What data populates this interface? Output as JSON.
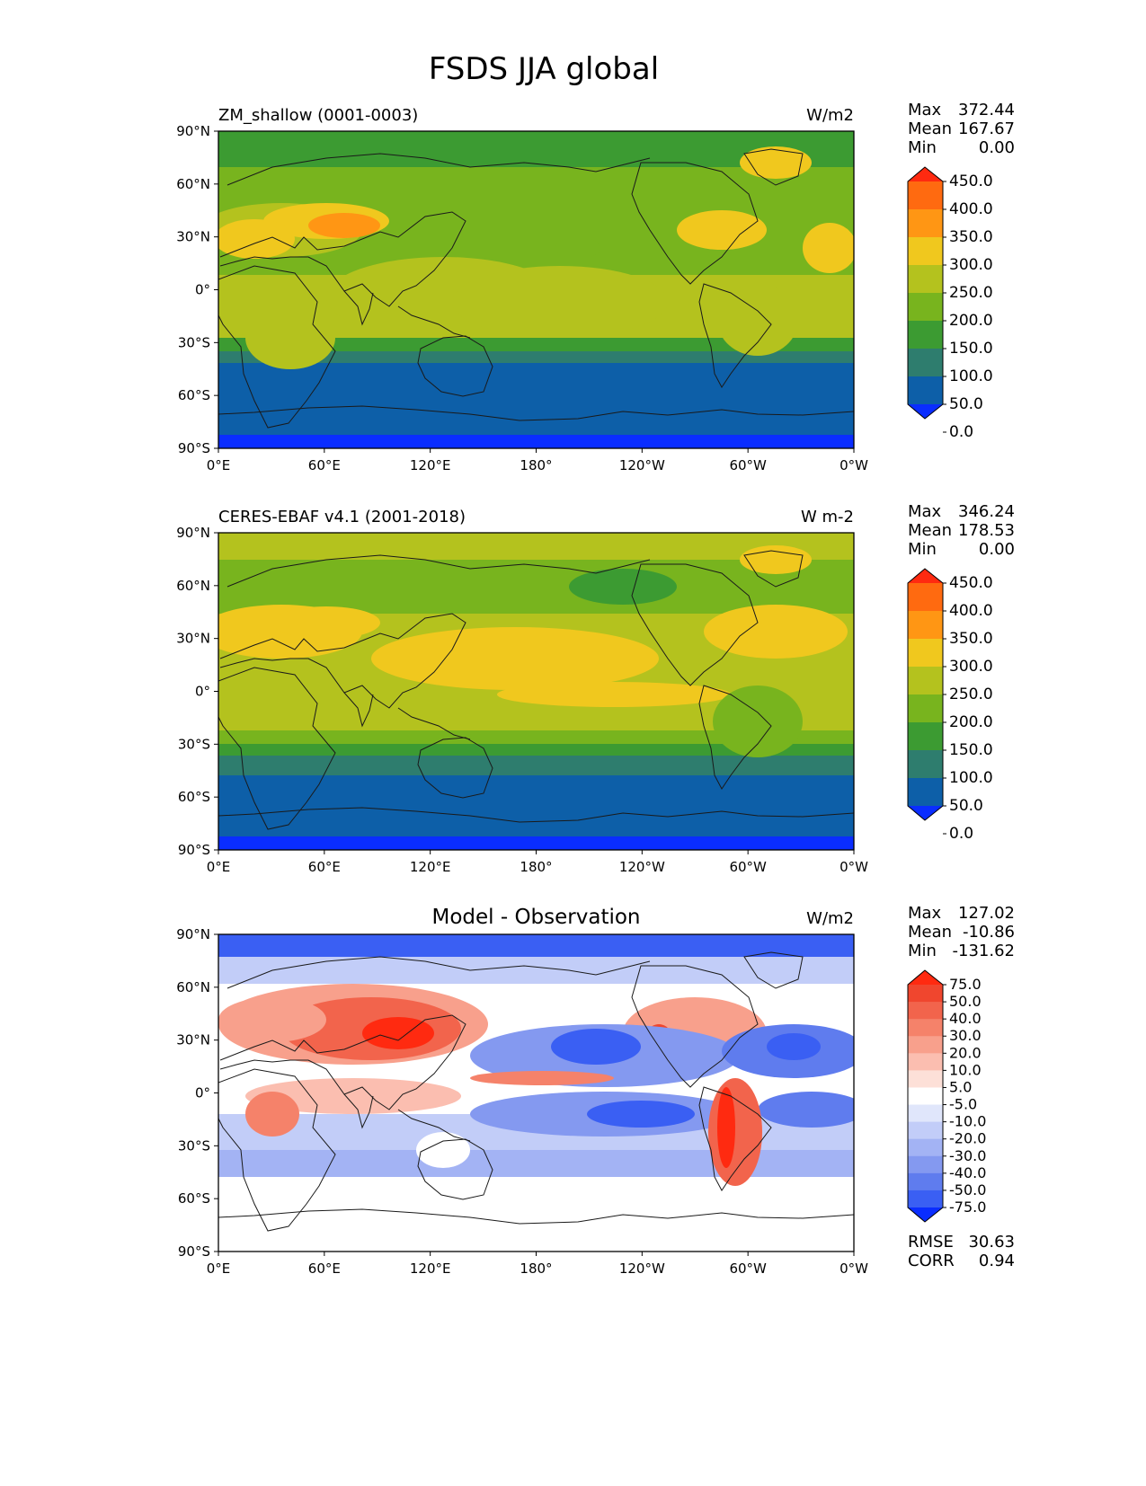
{
  "figure": {
    "title": "FSDS JJA global"
  },
  "axes": {
    "lat_ticks": [
      "90°N",
      "60°N",
      "30°N",
      "0°",
      "30°S",
      "60°S",
      "90°S"
    ],
    "lon_ticks": [
      "0°E",
      "60°E",
      "120°E",
      "180°",
      "120°W",
      "60°W",
      "0°W"
    ]
  },
  "panels": [
    {
      "id": "model",
      "left_title": "ZM_shallow (0001-0003)",
      "center_title": "",
      "units": "W/m2",
      "stats": [
        {
          "label": "Max",
          "value": "372.44"
        },
        {
          "label": "Mean",
          "value": "167.67"
        },
        {
          "label": "Min",
          "value": "0.00"
        }
      ],
      "colorbar": {
        "labels": [
          "450.0",
          "400.0",
          "350.0",
          "300.0",
          "250.0",
          "200.0",
          "150.0",
          "100.0",
          "50.0",
          "0.0"
        ],
        "colors": [
          "#ff2a10",
          "#ff6a10",
          "#ff9614",
          "#f0c81e",
          "#b4c21e",
          "#78b41e",
          "#3c9b32",
          "#2e7d6e",
          "#0d5fa8",
          "#0a2dff"
        ]
      },
      "footer": []
    },
    {
      "id": "obs",
      "left_title": "CERES-EBAF v4.1 (2001-2018)",
      "center_title": "",
      "units": "W m-2",
      "stats": [
        {
          "label": "Max",
          "value": "346.24"
        },
        {
          "label": "Mean",
          "value": "178.53"
        },
        {
          "label": "Min",
          "value": "0.00"
        }
      ],
      "colorbar": {
        "labels": [
          "450.0",
          "400.0",
          "350.0",
          "300.0",
          "250.0",
          "200.0",
          "150.0",
          "100.0",
          "50.0",
          "0.0"
        ],
        "colors": [
          "#ff2a10",
          "#ff6a10",
          "#ff9614",
          "#f0c81e",
          "#b4c21e",
          "#78b41e",
          "#3c9b32",
          "#2e7d6e",
          "#0d5fa8",
          "#0a2dff"
        ]
      },
      "footer": []
    },
    {
      "id": "diff",
      "left_title": "",
      "center_title": "Model - Observation",
      "units": "W/m2",
      "stats": [
        {
          "label": "Max",
          "value": "127.02"
        },
        {
          "label": "Mean",
          "value": "-10.86"
        },
        {
          "label": "Min",
          "value": "-131.62"
        }
      ],
      "colorbar": {
        "labels": [
          "75.0",
          "50.0",
          "40.0",
          "30.0",
          "20.0",
          "10.0",
          "5.0",
          "-5.0",
          "-10.0",
          "-20.0",
          "-30.0",
          "-40.0",
          "-50.0",
          "-75.0"
        ],
        "colors": [
          "#ff2a10",
          "#f0462e",
          "#f2644c",
          "#f5826a",
          "#f8a08c",
          "#fbbeb0",
          "#fde0d8",
          "#ffffff",
          "#e0e6fb",
          "#c2cdf8",
          "#a3b3f4",
          "#8499f0",
          "#5f7cee",
          "#3a5ff3",
          "#0a2dff"
        ]
      },
      "footer": [
        {
          "label": "RMSE",
          "value": "30.63"
        },
        {
          "label": "CORR",
          "value": "0.94"
        }
      ]
    }
  ]
}
